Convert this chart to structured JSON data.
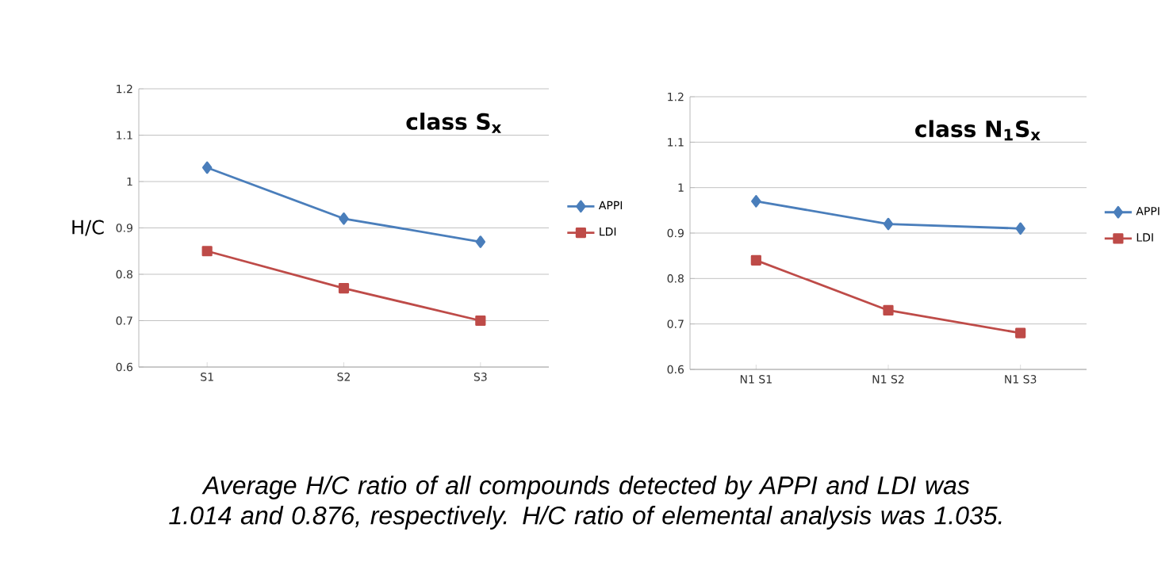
{
  "chart_data": [
    {
      "type": "line",
      "title": "class **S$_{x}$**",
      "ylabel": "H/C",
      "categories": [
        "S1",
        "S2",
        "S3"
      ],
      "series": [
        {
          "name": "APPI",
          "color": "#4a7ebb",
          "marker": "diamond",
          "values": [
            1.03,
            0.92,
            0.87
          ]
        },
        {
          "name": "LDI",
          "color": "#be4b48",
          "marker": "square",
          "values": [
            0.85,
            0.77,
            0.7
          ]
        }
      ],
      "ylim": [
        0.6,
        1.2
      ],
      "yticks": [
        0.6,
        0.7,
        0.8,
        0.9,
        1,
        1.1,
        1.2
      ],
      "grid": "y",
      "legend": "right",
      "annotations": [
        "Average H/C ratio of all compounds detected by APPI and LDI was 1.014 and 0.876, respectively.  H/C ratio of elemental analysis was 1.035."
      ]
    },
    {
      "type": "line",
      "title": "class **N$_{1}$S$_{x}$**",
      "categories": [
        "N1 S1",
        "N1 S2",
        "N1 S3"
      ],
      "series": [
        {
          "name": "APPI",
          "color": "#4a7ebb",
          "marker": "diamond",
          "values": [
            0.97,
            0.92,
            0.91
          ]
        },
        {
          "name": "LDI",
          "color": "#be4b48",
          "marker": "square",
          "values": [
            0.84,
            0.73,
            0.68
          ]
        }
      ],
      "ylim": [
        0.6,
        1.2
      ],
      "yticks": [
        0.6,
        0.7,
        0.8,
        0.9,
        1,
        1.1,
        1.2
      ],
      "grid": "y",
      "legend": "right"
    }
  ]
}
